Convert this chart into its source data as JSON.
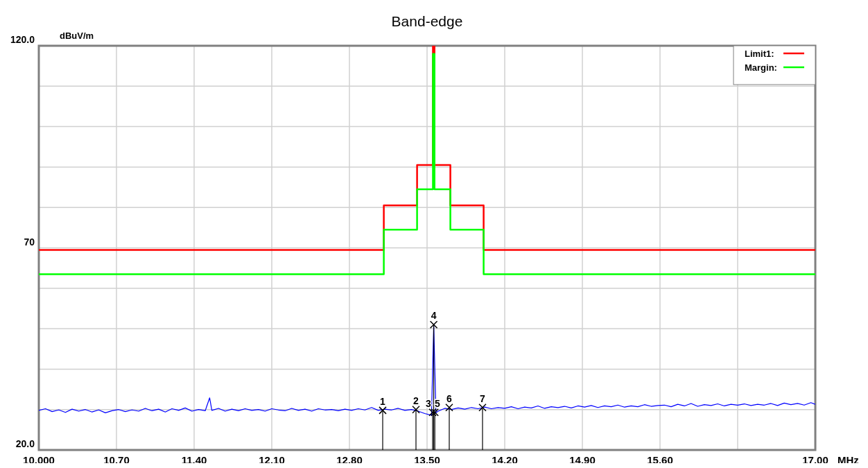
{
  "chart_data": {
    "type": "line",
    "title": "Band-edge",
    "xlabel": "MHz",
    "ylabel": "dBuV/m",
    "xlim": [
      10,
      17
    ],
    "xticks": [
      {
        "value": 10,
        "label": "10.000"
      },
      {
        "value": 10.7,
        "label": "10.70"
      },
      {
        "value": 11.4,
        "label": "11.40"
      },
      {
        "value": 12.1,
        "label": "12.10"
      },
      {
        "value": 12.8,
        "label": "12.80"
      },
      {
        "value": 13.5,
        "label": "13.50"
      },
      {
        "value": 14.2,
        "label": "14.20"
      },
      {
        "value": 14.9,
        "label": "14.90"
      },
      {
        "value": 15.6,
        "label": "15.60"
      },
      {
        "value": 16.3,
        "label": null
      },
      {
        "value": 17,
        "label": "17.00"
      }
    ],
    "ylim": [
      20,
      120
    ],
    "yticks": [
      {
        "value": 20,
        "label": "20.0"
      },
      {
        "value": 30,
        "label": null
      },
      {
        "value": 40,
        "label": null
      },
      {
        "value": 50,
        "label": null
      },
      {
        "value": 60,
        "label": null
      },
      70,
      {
        "value": 80,
        "label": null
      },
      {
        "value": 90,
        "label": null
      },
      {
        "value": 100,
        "label": null
      },
      {
        "value": 110,
        "label": null
      },
      {
        "value": 120,
        "label": "120.0"
      }
    ],
    "grid": true,
    "legend": "top right",
    "marker": "none",
    "line_style": "solid",
    "series": [
      {
        "name": "Limit1:",
        "type": "step",
        "color": "#ff0000",
        "x": [
          10,
          13.11,
          13.41,
          13.553,
          13.567,
          13.71,
          14.01,
          17
        ],
        "values": [
          69.5,
          80.5,
          90.5,
          120,
          90.5,
          80.5,
          69.5,
          69.5
        ]
      },
      {
        "name": "Margin:",
        "type": "step",
        "color": "#00ff00",
        "x": [
          10,
          13.11,
          13.41,
          13.553,
          13.567,
          13.71,
          14.01,
          17
        ],
        "values": [
          63.5,
          74.5,
          84.5,
          118,
          84.5,
          74.5,
          63.5,
          63.5
        ]
      },
      {
        "color": "#0000ff",
        "x": [
          10.0,
          10.06,
          10.12,
          10.18,
          10.24,
          10.3,
          10.36,
          10.42,
          10.48,
          10.54,
          10.6,
          10.66,
          10.72,
          10.78,
          10.84,
          10.9,
          10.96,
          11.02,
          11.08,
          11.14,
          11.2,
          11.26,
          11.32,
          11.38,
          11.44,
          11.5,
          11.54,
          11.56,
          11.62,
          11.68,
          11.74,
          11.8,
          11.86,
          11.92,
          11.98,
          12.04,
          12.1,
          12.16,
          12.22,
          12.28,
          12.34,
          12.4,
          12.46,
          12.52,
          12.58,
          12.64,
          12.7,
          12.76,
          12.82,
          12.88,
          12.94,
          13.0,
          13.06,
          13.12,
          13.18,
          13.24,
          13.3,
          13.36,
          13.42,
          13.48,
          13.54,
          13.56,
          13.58,
          13.6,
          13.66,
          13.72,
          13.78,
          13.84,
          13.9,
          13.96,
          14.02,
          14.08,
          14.14,
          14.2,
          14.26,
          14.32,
          14.38,
          14.44,
          14.5,
          14.56,
          14.62,
          14.68,
          14.74,
          14.8,
          14.86,
          14.92,
          14.98,
          15.04,
          15.1,
          15.16,
          15.22,
          15.28,
          15.34,
          15.4,
          15.46,
          15.52,
          15.58,
          15.64,
          15.7,
          15.76,
          15.82,
          15.88,
          15.94,
          16.0,
          16.06,
          16.12,
          16.18,
          16.24,
          16.3,
          16.36,
          16.42,
          16.48,
          16.54,
          16.6,
          16.66,
          16.72,
          16.78,
          16.84,
          16.9,
          16.96,
          17.0
        ],
        "values": [
          29.8,
          30.2,
          29.5,
          29.9,
          29.3,
          30.1,
          29.6,
          30.0,
          29.4,
          29.9,
          29.2,
          29.7,
          30.0,
          29.5,
          29.9,
          29.6,
          30.3,
          29.7,
          30.1,
          29.4,
          30.2,
          29.8,
          30.4,
          29.6,
          30.0,
          29.7,
          32.9,
          29.8,
          30.3,
          29.6,
          30.1,
          29.7,
          30.2,
          29.8,
          30.0,
          29.6,
          30.2,
          29.9,
          29.7,
          30.3,
          29.8,
          30.1,
          29.6,
          30.2,
          29.9,
          30.0,
          29.7,
          30.1,
          29.8,
          30.2,
          29.9,
          30.5,
          29.8,
          30.1,
          29.9,
          30.3,
          29.8,
          30.0,
          29.6,
          29.0,
          28.6,
          51.0,
          29.2,
          29.6,
          30.3,
          30.0,
          30.4,
          30.1,
          30.5,
          30.2,
          30.6,
          30.2,
          30.5,
          30.3,
          30.7,
          30.2,
          30.6,
          30.4,
          30.9,
          30.3,
          30.7,
          30.5,
          30.8,
          30.4,
          30.9,
          30.6,
          31.0,
          30.5,
          30.9,
          30.7,
          31.1,
          30.6,
          30.9,
          30.7,
          31.2,
          30.8,
          31.0,
          31.1,
          30.7,
          31.3,
          30.9,
          31.5,
          30.8,
          31.2,
          31.0,
          31.4,
          30.9,
          31.3,
          31.1,
          31.4,
          31.0,
          31.3,
          31.1,
          31.5,
          31.0,
          31.6,
          31.2,
          31.5,
          31.1,
          31.7,
          31.3
        ]
      }
    ],
    "annotations": [
      {
        "text": "1",
        "x": 13.1,
        "y": 29.8
      },
      {
        "text": "2",
        "x": 13.4,
        "y": 30.0
      },
      {
        "text": "3",
        "x": 13.55,
        "y": 29.3
      },
      {
        "text": "4",
        "x": 13.56,
        "y": 51.0
      },
      {
        "text": "5",
        "x": 13.57,
        "y": 29.3
      },
      {
        "text": "6",
        "x": 13.7,
        "y": 30.5
      },
      {
        "text": "7",
        "x": 14.0,
        "y": 30.5
      }
    ]
  }
}
